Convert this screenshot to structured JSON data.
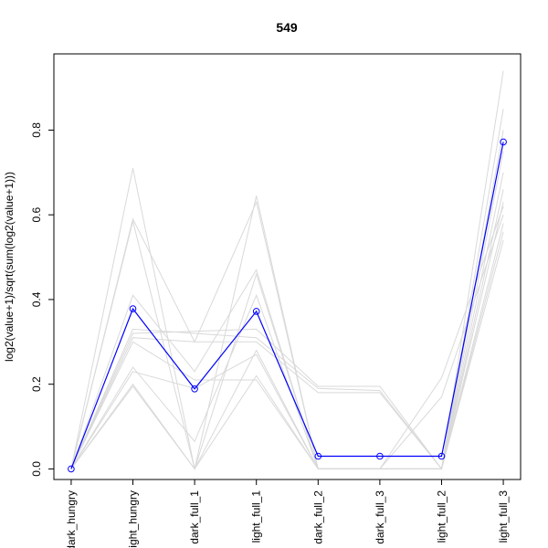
{
  "chart_data": {
    "type": "line",
    "title": "549",
    "xlabel": "",
    "ylabel": "log2(value+1)/sqrt(sum(log2(value+1)))",
    "categories": [
      "dark_hungry",
      "light_hungry",
      "dark_full_1",
      "light_full_1",
      "dark_full_2",
      "dark_full_3",
      "light_full_2",
      "light_full_3"
    ],
    "ylim": [
      -0.025,
      0.98
    ],
    "yticks": [
      0.0,
      0.2,
      0.4,
      0.6,
      0.8
    ],
    "grid": false,
    "legend": "none",
    "series": [
      {
        "role": "highlight",
        "values": [
          0.0,
          0.378,
          0.189,
          0.372,
          0.03,
          0.03,
          0.03,
          0.772
        ]
      },
      {
        "role": "background",
        "values": [
          0.0,
          0.71,
          0.0,
          0.645,
          0.0,
          0.0,
          0.0,
          0.94
        ]
      },
      {
        "role": "background",
        "values": [
          0.0,
          0.59,
          0.3,
          0.63,
          0.0,
          0.0,
          0.0,
          0.85
        ]
      },
      {
        "role": "background",
        "values": [
          0.0,
          0.585,
          0.0,
          0.46,
          0.0,
          0.0,
          0.0,
          0.8
        ]
      },
      {
        "role": "background",
        "values": [
          0.0,
          0.41,
          0.23,
          0.47,
          0.0,
          0.0,
          0.0,
          0.75
        ]
      },
      {
        "role": "background",
        "values": [
          0.0,
          0.33,
          0.32,
          0.31,
          0.19,
          0.185,
          0.0,
          0.66
        ]
      },
      {
        "role": "background",
        "values": [
          0.0,
          0.32,
          0.325,
          0.33,
          0.195,
          0.195,
          0.0,
          0.7
        ]
      },
      {
        "role": "background",
        "values": [
          0.0,
          0.31,
          0.3,
          0.3,
          0.18,
          0.18,
          0.0,
          0.63
        ]
      },
      {
        "role": "background",
        "values": [
          0.0,
          0.24,
          0.065,
          0.41,
          0.0,
          0.0,
          0.215,
          0.62
        ]
      },
      {
        "role": "background",
        "values": [
          0.0,
          0.23,
          0.19,
          0.27,
          0.0,
          0.0,
          0.17,
          0.6
        ]
      },
      {
        "role": "background",
        "values": [
          0.0,
          0.2,
          0.0,
          0.28,
          0.0,
          0.0,
          0.0,
          0.56
        ]
      },
      {
        "role": "background",
        "values": [
          0.0,
          0.195,
          0.0,
          0.22,
          0.0,
          0.0,
          0.0,
          0.54
        ]
      },
      {
        "role": "background",
        "values": [
          0.0,
          0.3,
          0.21,
          0.21,
          0.0,
          0.0,
          0.0,
          0.58
        ]
      }
    ],
    "colors": {
      "highlight": "#0000ff",
      "background": "#d9d9d9",
      "axis": "#000000"
    }
  }
}
